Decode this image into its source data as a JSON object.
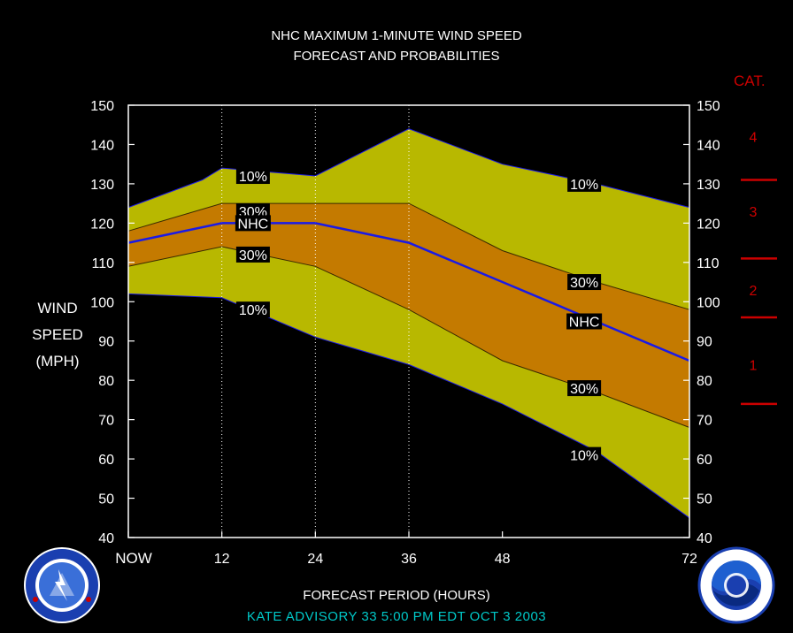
{
  "title_line1": "NHC MAXIMUM 1-MINUTE WIND SPEED",
  "title_line2": "FORECAST AND PROBABILITIES",
  "ylabel_lines": [
    "WIND",
    "SPEED",
    "(MPH)"
  ],
  "xlabel": "FORECAST PERIOD (HOURS)",
  "advisory": "KATE   ADVISORY  33  5:00  PM  EDT  OCT  3  2003",
  "category_header": "CAT.",
  "logos": {
    "left": "nws-logo",
    "right": "noaa-logo"
  },
  "colors": {
    "background": "#000000",
    "band_10": "#b8b800",
    "band_30": "#c47a00",
    "nhc_line": "#1a1ae6",
    "category": "#cc0000",
    "text": "#ffffff",
    "advisory_text": "#00c8c8"
  },
  "chart_data": {
    "type": "area",
    "x_tick_labels": [
      "NOW",
      "12",
      "24",
      "36",
      "48",
      "72"
    ],
    "x_ticks": [
      0,
      12,
      24,
      36,
      48,
      72
    ],
    "xlim": [
      0,
      72
    ],
    "ylim": [
      40,
      150
    ],
    "y_ticks": [
      40,
      50,
      60,
      70,
      80,
      90,
      100,
      110,
      120,
      130,
      140,
      150
    ],
    "grid_vertical_dotted": [
      12,
      24,
      36
    ],
    "series": [
      {
        "id": "upper10",
        "x": [
          0,
          9.5,
          12,
          24,
          36,
          48,
          60,
          72
        ],
        "values": [
          124,
          131,
          134,
          132,
          144,
          135,
          130,
          124
        ]
      },
      {
        "id": "upper30",
        "x": [
          0,
          12,
          24,
          36,
          48,
          60,
          72
        ],
        "values": [
          118,
          125,
          125,
          125,
          113,
          105,
          98
        ]
      },
      {
        "id": "nhc",
        "x": [
          0,
          12,
          24,
          36,
          48,
          60,
          72
        ],
        "values": [
          115,
          120,
          120,
          115,
          105,
          95,
          85
        ]
      },
      {
        "id": "lower30",
        "x": [
          0,
          12,
          24,
          36,
          48,
          60,
          72
        ],
        "values": [
          109,
          114,
          109,
          98,
          85,
          77,
          68
        ]
      },
      {
        "id": "lower10",
        "x": [
          0,
          12,
          24,
          36,
          48,
          60,
          72
        ],
        "values": [
          102,
          101,
          91,
          84,
          74,
          62,
          45
        ]
      }
    ],
    "labels": [
      {
        "text": "10%",
        "x": 16,
        "y": 132
      },
      {
        "text": "30%",
        "x": 16,
        "y": 123
      },
      {
        "text": "NHC",
        "x": 16,
        "y": 120
      },
      {
        "text": "30%",
        "x": 16,
        "y": 112
      },
      {
        "text": "10%",
        "x": 16,
        "y": 98
      },
      {
        "text": "10%",
        "x": 58.5,
        "y": 130
      },
      {
        "text": "30%",
        "x": 58.5,
        "y": 105
      },
      {
        "text": "NHC",
        "x": 58.5,
        "y": 95
      },
      {
        "text": "30%",
        "x": 58.5,
        "y": 78
      },
      {
        "text": "10%",
        "x": 58.5,
        "y": 61
      }
    ],
    "categories": [
      {
        "label": "4",
        "y": 142
      },
      {
        "label": "3",
        "y": 123
      },
      {
        "label": "2",
        "y": 103
      },
      {
        "label": "1",
        "y": 84
      }
    ],
    "category_thresholds": [
      131,
      111,
      96,
      74
    ]
  }
}
